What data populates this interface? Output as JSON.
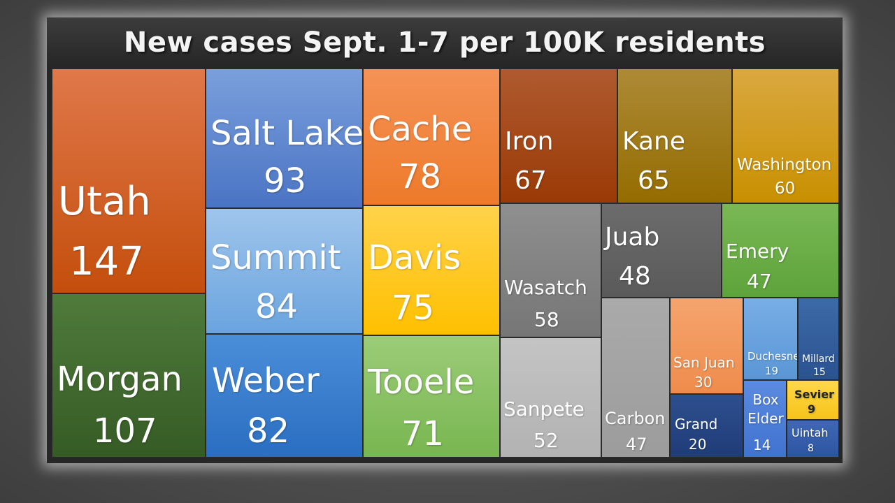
{
  "title": "New cases Sept. 1-7 per 100K residents",
  "chart_data": {
    "type": "treemap",
    "title": "New cases Sept. 1-7 per 100K residents",
    "items": [
      {
        "label": "Utah",
        "value": 147,
        "color_top": "#e0784a",
        "color_bottom": "#c44e0c",
        "text_color": "#ffffff"
      },
      {
        "label": "Morgan",
        "value": 107,
        "color_top": "#4f7b3c",
        "color_bottom": "#365b25",
        "text_color": "#ffffff"
      },
      {
        "label": "Salt Lake",
        "value": 93,
        "color_top": "#7a9fdc",
        "color_bottom": "#4a74c4",
        "text_color": "#ffffff"
      },
      {
        "label": "Summit",
        "value": 84,
        "color_top": "#9fc5ec",
        "color_bottom": "#6aa4df",
        "text_color": "#ffffff"
      },
      {
        "label": "Weber",
        "value": 82,
        "color_top": "#4b8ed8",
        "color_bottom": "#2a6ec2",
        "text_color": "#ffffff"
      },
      {
        "label": "Cache",
        "value": 78,
        "color_top": "#f49256",
        "color_bottom": "#ee7a2a",
        "text_color": "#ffffff"
      },
      {
        "label": "Davis",
        "value": 75,
        "color_top": "#ffd24a",
        "color_bottom": "#ffc000",
        "text_color": "#ffffff"
      },
      {
        "label": "Tooele",
        "value": 71,
        "color_top": "#9ccc78",
        "color_bottom": "#78b650",
        "text_color": "#ffffff"
      },
      {
        "label": "Iron",
        "value": 67,
        "color_top": "#b05a30",
        "color_bottom": "#9a3a06",
        "text_color": "#ffffff"
      },
      {
        "label": "Kane",
        "value": 65,
        "color_top": "#ad8a36",
        "color_bottom": "#946c00",
        "text_color": "#ffffff"
      },
      {
        "label": "Washington",
        "value": 60,
        "color_top": "#daa840",
        "color_bottom": "#c89000",
        "text_color": "#ffffff"
      },
      {
        "label": "Wasatch",
        "value": 58,
        "color_top": "#8f8f8f",
        "color_bottom": "#767676",
        "text_color": "#ffffff"
      },
      {
        "label": "Juab",
        "value": 48,
        "color_top": "#6c6c6c",
        "color_bottom": "#5a5a5a",
        "text_color": "#ffffff"
      },
      {
        "label": "Emery",
        "value": 47,
        "color_top": "#7ab856",
        "color_bottom": "#5da33a",
        "text_color": "#ffffff"
      },
      {
        "label": "Sanpete",
        "value": 52,
        "color_top": "#c4c4c4",
        "color_bottom": "#b2b2b2",
        "text_color": "#ffffff"
      },
      {
        "label": "Carbon",
        "value": 47,
        "color_top": "#aaaaaa",
        "color_bottom": "#9c9c9c",
        "text_color": "#ffffff"
      },
      {
        "label": "San Juan",
        "value": 30,
        "color_top": "#f5a46e",
        "color_bottom": "#ef8c4c",
        "text_color": "#ffffff"
      },
      {
        "label": "Grand",
        "value": 20,
        "color_top": "#2e4f8e",
        "color_bottom": "#1f3c78",
        "text_color": "#ffffff"
      },
      {
        "label": "Duchesne",
        "value": 19,
        "color_top": "#78aee6",
        "color_bottom": "#5a96d6",
        "text_color": "#ffffff"
      },
      {
        "label": "Millard",
        "value": 15,
        "color_top": "#3d6aa8",
        "color_bottom": "#2a5390",
        "text_color": "#ffffff"
      },
      {
        "label": "Box Elder",
        "value": 14,
        "color_top": "#5b8be0",
        "color_bottom": "#4072d0",
        "text_color": "#ffffff"
      },
      {
        "label": "Sevier",
        "value": 9,
        "color_top": "#ffd84a",
        "color_bottom": "#f6c31a",
        "text_color": "#222222"
      },
      {
        "label": "Uintah",
        "value": 8,
        "color_top": "#3f68b4",
        "color_bottom": "#2d54a0",
        "text_color": "#ffffff"
      }
    ]
  }
}
